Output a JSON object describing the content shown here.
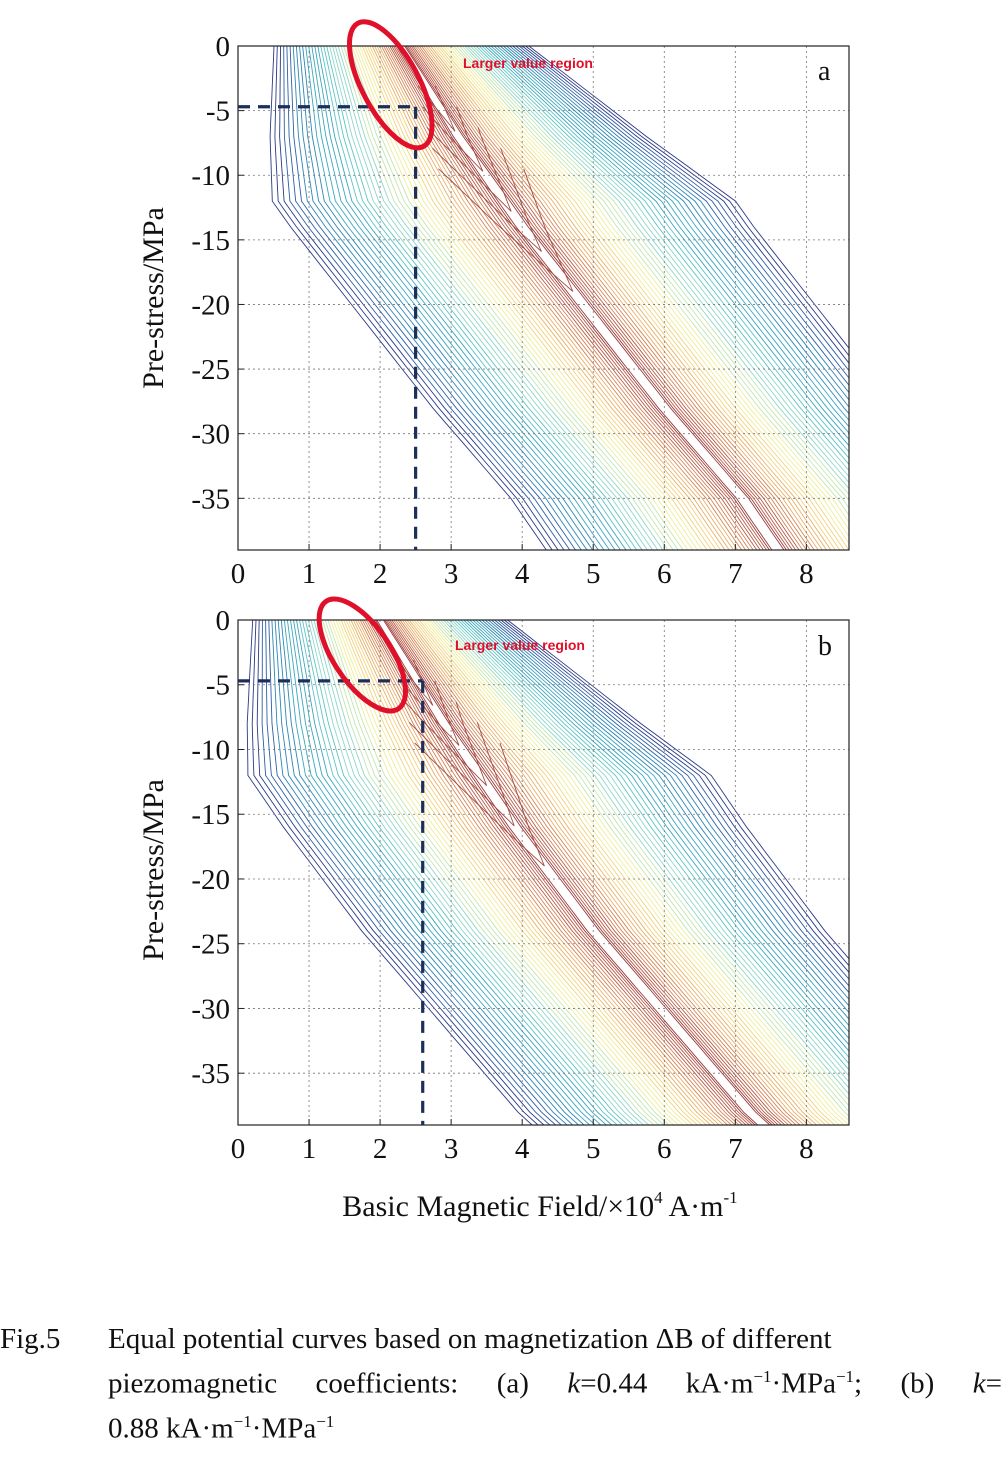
{
  "figure": {
    "caption_label": "Fig.5",
    "caption_line1": "Equal potential curves based on magnetization ΔB of different",
    "caption_line2_parts": [
      "piezomagnetic coefficients: (a) ",
      "k",
      "=0.44 kA·m",
      "−1",
      "·MPa",
      "−1",
      "; (b) ",
      "k",
      "="
    ],
    "caption_line3_parts": [
      "0.88 kA·m",
      "−1",
      "·MPa",
      "−1"
    ]
  },
  "chart_data": [
    {
      "type": "contour",
      "panel_label": "a",
      "annotation": "Larger value region",
      "ylabel": "Pre-stress/MPa",
      "xlabel": "",
      "xlim": [
        0,
        8.6
      ],
      "ylim": [
        -39,
        0
      ],
      "x_ticks": [
        "0",
        "1",
        "2",
        "3",
        "4",
        "5",
        "6",
        "7",
        "8"
      ],
      "y_ticks": [
        "0",
        "-5",
        "-10",
        "-15",
        "-20",
        "-25",
        "-30",
        "-35"
      ],
      "grid": true,
      "ridge": [
        [
          2.3,
          0
        ],
        [
          3.1,
          -7
        ],
        [
          4.0,
          -14
        ],
        [
          5.0,
          -21
        ],
        [
          6.0,
          -28
        ],
        [
          7.1,
          -35
        ],
        [
          7.6,
          -39
        ]
      ],
      "reference_point": {
        "x": 2.5,
        "y": -4.7
      },
      "highlight_ellipse": {
        "cx": 2.15,
        "cy": -3.0,
        "rx": 0.4,
        "ry": 5.4,
        "rotation_deg": -28
      }
    },
    {
      "type": "contour",
      "panel_label": "b",
      "annotation": "Larger value region",
      "ylabel": "Pre-stress/MPa",
      "xlabel_parts": [
        "Basic Magnetic Field/×10",
        "4",
        " A·m",
        "-1"
      ],
      "xlim": [
        0,
        8.6
      ],
      "ylim": [
        -39,
        0
      ],
      "x_ticks": [
        "0",
        "1",
        "2",
        "3",
        "4",
        "5",
        "6",
        "7",
        "8"
      ],
      "y_ticks": [
        "0",
        "-5",
        "-10",
        "-15",
        "-20",
        "-25",
        "-30",
        "-35"
      ],
      "grid": true,
      "ridge": [
        [
          2.0,
          0
        ],
        [
          2.9,
          -8
        ],
        [
          3.9,
          -16
        ],
        [
          5.0,
          -24
        ],
        [
          6.1,
          -31
        ],
        [
          7.2,
          -38
        ],
        [
          7.4,
          -39
        ]
      ],
      "reference_point": {
        "x": 2.6,
        "y": -4.7
      },
      "highlight_ellipse": {
        "cx": 1.75,
        "cy": -2.7,
        "rx": 0.4,
        "ry": 5.0,
        "rotation_deg": -34
      }
    }
  ]
}
